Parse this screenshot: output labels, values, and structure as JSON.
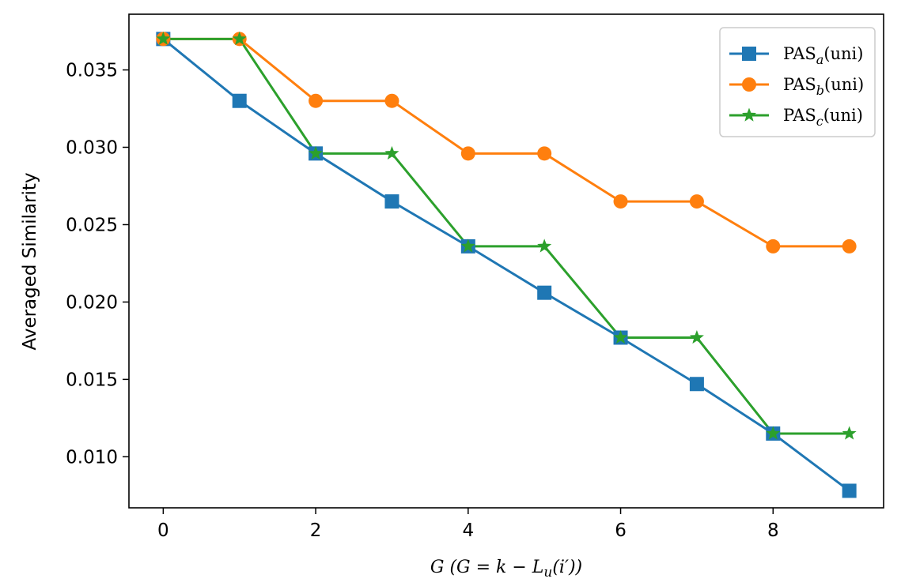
{
  "chart_data": {
    "type": "line",
    "title": "",
    "xlabel": "G (G = k − L_u(i′))",
    "ylabel": "Averaged Similarity",
    "x": [
      0,
      1,
      2,
      3,
      4,
      5,
      6,
      7,
      8,
      9
    ],
    "xlim": [
      -0.45,
      9.45
    ],
    "ylim": [
      0.0067,
      0.0386
    ],
    "xticks": [
      0,
      2,
      4,
      6,
      8
    ],
    "xtick_labels": [
      "0",
      "2",
      "4",
      "6",
      "8"
    ],
    "yticks": [
      0.01,
      0.015,
      0.02,
      0.025,
      0.03,
      0.035
    ],
    "ytick_labels": [
      "0.010",
      "0.015",
      "0.020",
      "0.025",
      "0.030",
      "0.035"
    ],
    "grid": false,
    "legend_position": "top-right",
    "series": [
      {
        "name": "PASa(uni)",
        "base": "PAS",
        "sub": "a",
        "suffix": "(uni)",
        "color": "#1f77b4",
        "marker": "square",
        "values": [
          0.037,
          0.033,
          0.0296,
          0.0265,
          0.0236,
          0.0206,
          0.0177,
          0.0147,
          0.0115,
          0.0078
        ]
      },
      {
        "name": "PASb(uni)",
        "base": "PAS",
        "sub": "b",
        "suffix": "(uni)",
        "color": "#ff7f0e",
        "marker": "circle",
        "values": [
          0.037,
          0.037,
          0.033,
          0.033,
          0.0296,
          0.0296,
          0.0265,
          0.0265,
          0.0236,
          0.0236
        ]
      },
      {
        "name": "PASc(uni)",
        "base": "PAS",
        "sub": "c",
        "suffix": "(uni)",
        "color": "#2ca02c",
        "marker": "star",
        "values": [
          0.037,
          0.037,
          0.0296,
          0.0296,
          0.0236,
          0.0236,
          0.0177,
          0.0177,
          0.0115,
          0.0115
        ]
      }
    ]
  }
}
